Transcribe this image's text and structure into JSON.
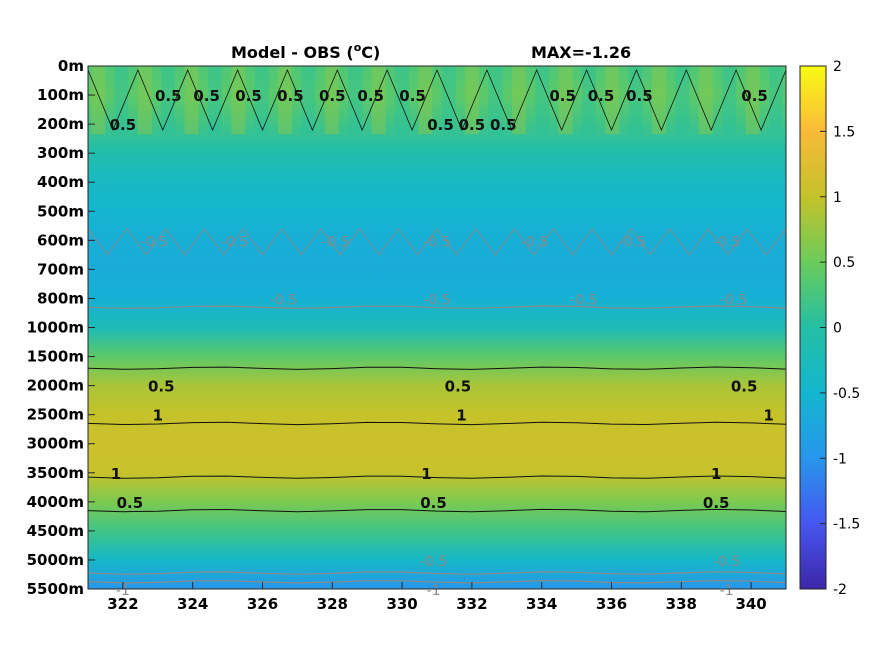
{
  "chart_data": {
    "type": "heatmap",
    "title": "Model - OBS (",
    "title_unit_sup": "o",
    "title_unit_end": "C)",
    "max_label": "MAX=-1.26",
    "x": {
      "ticks": [
        322,
        324,
        326,
        328,
        330,
        332,
        334,
        336,
        338,
        340
      ],
      "tick_labels": [
        "322",
        "324",
        "326",
        "328",
        "330",
        "332",
        "334",
        "336",
        "338",
        "340"
      ],
      "range": [
        321,
        341
      ]
    },
    "y": {
      "levels": [
        "0m",
        "100m",
        "200m",
        "300m",
        "400m",
        "500m",
        "600m",
        "700m",
        "800m",
        "1000m",
        "1500m",
        "2000m",
        "2500m",
        "3000m",
        "3500m",
        "4000m",
        "4500m",
        "5000m",
        "5500m"
      ],
      "reversed": true
    },
    "colorbar": {
      "ticks": [
        2,
        1.5,
        1,
        0.5,
        0,
        -0.5,
        -1,
        -1.5,
        -2
      ],
      "tick_labels": [
        "2",
        "1.5",
        "1",
        "0.5",
        "0",
        "-0.5",
        "-1",
        "-1.5",
        "-2"
      ],
      "range": [
        -2,
        2
      ],
      "colormap": "parula"
    },
    "field_profile": {
      "levels": [
        "0m",
        "100m",
        "200m",
        "300m",
        "400m",
        "500m",
        "600m",
        "700m",
        "800m",
        "1000m",
        "1500m",
        "2000m",
        "2500m",
        "3000m",
        "3500m",
        "4000m",
        "4500m",
        "5000m",
        "5500m"
      ],
      "values": [
        0.3,
        0.4,
        0.2,
        -0.1,
        -0.35,
        -0.5,
        -0.62,
        -0.66,
        -0.6,
        -0.2,
        0.4,
        0.85,
        1.0,
        1.08,
        1.02,
        0.6,
        0.2,
        -0.4,
        -1.0
      ]
    },
    "contour_labels": [
      {
        "text": "0.5",
        "style": "dark",
        "x": 322.0,
        "level": "200m"
      },
      {
        "text": "0.5",
        "style": "dark",
        "x": 323.3,
        "level": "100m"
      },
      {
        "text": "0.5",
        "style": "dark",
        "x": 324.4,
        "level": "100m"
      },
      {
        "text": "0.5",
        "style": "dark",
        "x": 325.6,
        "level": "100m"
      },
      {
        "text": "0.5",
        "style": "dark",
        "x": 326.8,
        "level": "100m"
      },
      {
        "text": "0.5",
        "style": "dark",
        "x": 328.0,
        "level": "100m"
      },
      {
        "text": "0.5",
        "style": "dark",
        "x": 329.1,
        "level": "100m"
      },
      {
        "text": "0.5",
        "style": "dark",
        "x": 330.3,
        "level": "100m"
      },
      {
        "text": "0.5",
        "style": "dark",
        "x": 331.1,
        "level": "200m"
      },
      {
        "text": "0.5",
        "style": "dark",
        "x": 332.0,
        "level": "200m"
      },
      {
        "text": "0.5",
        "style": "dark",
        "x": 332.9,
        "level": "200m"
      },
      {
        "text": "0.5",
        "style": "dark",
        "x": 334.6,
        "level": "100m"
      },
      {
        "text": "0.5",
        "style": "dark",
        "x": 335.7,
        "level": "100m"
      },
      {
        "text": "0.5",
        "style": "dark",
        "x": 336.8,
        "level": "100m"
      },
      {
        "text": "0.5",
        "style": "dark",
        "x": 340.1,
        "level": "100m"
      },
      {
        "text": "-0.5",
        "style": "grey",
        "x": 322.9,
        "level": "600m"
      },
      {
        "text": "-0.5",
        "style": "grey",
        "x": 325.2,
        "level": "600m"
      },
      {
        "text": "-0.5",
        "style": "grey",
        "x": 328.1,
        "level": "600m"
      },
      {
        "text": "-0.5",
        "style": "grey",
        "x": 331.0,
        "level": "600m"
      },
      {
        "text": "-0.5",
        "style": "grey",
        "x": 333.8,
        "level": "600m"
      },
      {
        "text": "-0.5",
        "style": "grey",
        "x": 336.6,
        "level": "600m"
      },
      {
        "text": "-0.5",
        "style": "grey",
        "x": 339.3,
        "level": "600m"
      },
      {
        "text": "-0.5",
        "style": "grey",
        "x": 326.6,
        "level": "800m"
      },
      {
        "text": "-0.5",
        "style": "grey",
        "x": 331.0,
        "level": "800m"
      },
      {
        "text": "-0.5",
        "style": "grey",
        "x": 335.2,
        "level": "800m"
      },
      {
        "text": "-0.5",
        "style": "grey",
        "x": 339.5,
        "level": "800m"
      },
      {
        "text": "0.5",
        "style": "dark",
        "x": 323.1,
        "level": "2000m"
      },
      {
        "text": "0.5",
        "style": "dark",
        "x": 331.6,
        "level": "2000m"
      },
      {
        "text": "0.5",
        "style": "dark",
        "x": 339.8,
        "level": "2000m"
      },
      {
        "text": "1",
        "style": "dark",
        "x": 323.0,
        "level": "2500m"
      },
      {
        "text": "1",
        "style": "dark",
        "x": 331.7,
        "level": "2500m"
      },
      {
        "text": "1",
        "style": "dark",
        "x": 340.5,
        "level": "2500m"
      },
      {
        "text": "1",
        "style": "dark",
        "x": 321.8,
        "level": "3500m"
      },
      {
        "text": "1",
        "style": "dark",
        "x": 330.7,
        "level": "3500m"
      },
      {
        "text": "1",
        "style": "dark",
        "x": 339.0,
        "level": "3500m"
      },
      {
        "text": "0.5",
        "style": "dark",
        "x": 322.2,
        "level": "4000m"
      },
      {
        "text": "0.5",
        "style": "dark",
        "x": 330.9,
        "level": "4000m"
      },
      {
        "text": "0.5",
        "style": "dark",
        "x": 339.0,
        "level": "4000m"
      },
      {
        "text": "-0.5",
        "style": "grey",
        "x": 330.9,
        "level": "5000m"
      },
      {
        "text": "-0.5",
        "style": "grey",
        "x": 339.3,
        "level": "5000m"
      },
      {
        "text": "-1",
        "style": "grey",
        "x": 322.0,
        "level": "5500m"
      },
      {
        "text": "-1",
        "style": "grey",
        "x": 330.9,
        "level": "5500m"
      },
      {
        "text": "-1",
        "style": "grey",
        "x": 339.3,
        "level": "5500m"
      }
    ],
    "grid": false,
    "colors": {
      "grey_contour": "#8a8a8a",
      "dark_contour": "#111111"
    }
  }
}
